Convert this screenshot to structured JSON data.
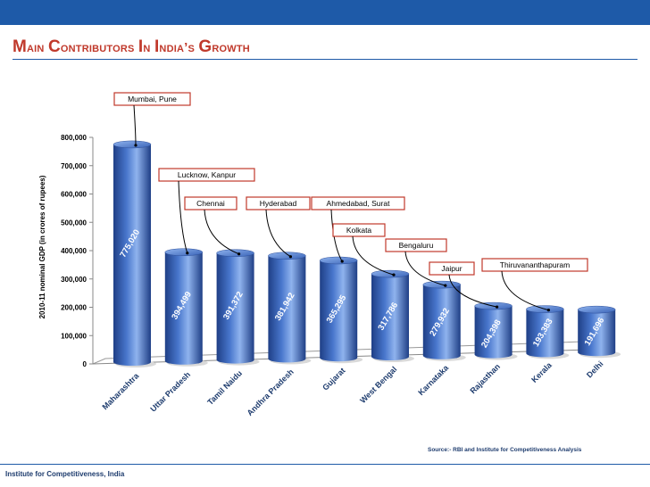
{
  "header": {
    "title_parts": [
      {
        "cap": "M",
        "rest": "ain"
      },
      {
        "cap": "C",
        "rest": "ontributors"
      },
      {
        "cap": "I",
        "rest": "n"
      },
      {
        "cap": "I",
        "rest": "ndia’s"
      },
      {
        "cap": "G",
        "rest": "rowth"
      }
    ]
  },
  "footer": {
    "org": "Institute for Competitiveness, India",
    "source": "Source:- RBI and Institute for Competitiveness Analysis"
  },
  "colors": {
    "bar_dark": "#1f3f86",
    "bar_mid": "#4876cc",
    "bar_light": "#8fb3ee",
    "accent_red": "#c0392b",
    "brand_blue": "#1e5aa8",
    "annotation_border": "#c0392b"
  },
  "chart_data": {
    "type": "bar",
    "title": "Main Contributors In India’s Growth",
    "ylabel": "2010-11 nominal GDP (in crores of rupees)",
    "xlabel": "",
    "ylim": [
      0,
      800000
    ],
    "yticks": [
      0,
      100000,
      200000,
      300000,
      400000,
      500000,
      600000,
      700000,
      800000
    ],
    "ytick_labels": [
      "0",
      "100,000",
      "200,000",
      "300,000",
      "400,000",
      "500,000",
      "600,000",
      "700,000",
      "800,000"
    ],
    "categories": [
      "Maharashtra",
      "Uttar Pradesh",
      "Tamil Naidu",
      "Andhra Pradesh",
      "Gujarat",
      "West Bengal",
      "Karnataka",
      "Rajasthan",
      "Kerala",
      "Delhi"
    ],
    "values": [
      775020,
      394499,
      391372,
      381942,
      365295,
      317786,
      279932,
      204398,
      193383,
      191696
    ],
    "value_labels": [
      "775,020",
      "394,499",
      "391,372",
      "381,942",
      "365,295",
      "317,786",
      "279,932",
      "204,398",
      "193,383",
      "191,696"
    ],
    "annotations": [
      {
        "category": "Maharashtra",
        "text": "Mumbai, Pune"
      },
      {
        "category": "Uttar Pradesh",
        "text": "Lucknow, Kanpur"
      },
      {
        "category": "Tamil Naidu",
        "text": "Chennai"
      },
      {
        "category": "Andhra Pradesh",
        "text": "Hyderabad"
      },
      {
        "category": "Gujarat",
        "text": "Ahmedabad, Surat"
      },
      {
        "category": "West Bengal",
        "text": "Kolkata"
      },
      {
        "category": "Karnataka",
        "text": "Bengaluru"
      },
      {
        "category": "Rajasthan",
        "text": "Jaipur"
      },
      {
        "category": "Kerala",
        "text": "Thiruvananthapuram"
      }
    ]
  }
}
